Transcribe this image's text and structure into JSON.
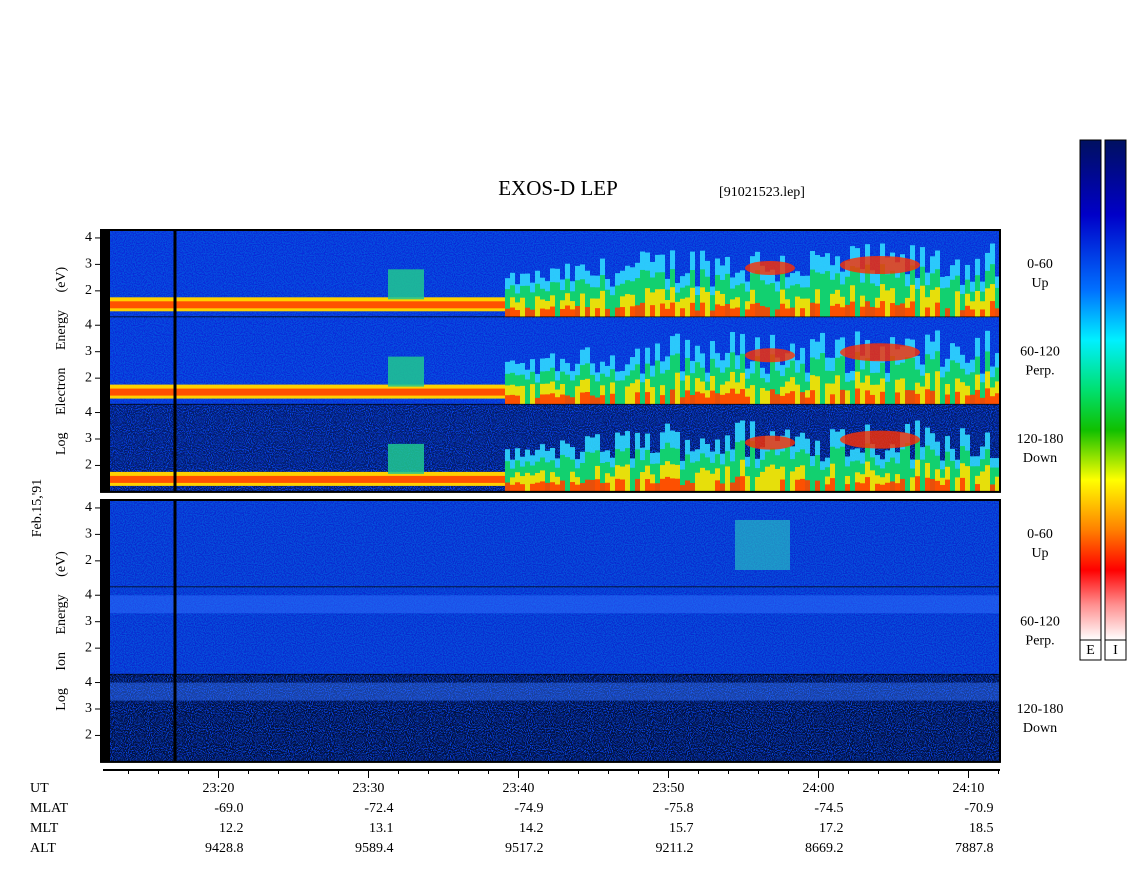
{
  "title": "EXOS-D LEP",
  "file": "[91021523.lep]",
  "date": "Feb.15,'91",
  "ylim": [
    1,
    4.3
  ],
  "yticks": [
    2,
    3,
    4
  ],
  "panels": [
    {
      "ylabel": "Log Electron Energy (eV)",
      "subpanels": [
        {
          "angle": "0-60",
          "direction": "Up"
        },
        {
          "angle": "60-120",
          "direction": "Perp."
        },
        {
          "angle": "120-180",
          "direction": "Down"
        }
      ]
    },
    {
      "ylabel": "Log Ion Energy (eV)",
      "subpanels": [
        {
          "angle": "0-60",
          "direction": "Up"
        },
        {
          "angle": "60-120",
          "direction": "Perp."
        },
        {
          "angle": "120-180",
          "direction": "Down"
        }
      ]
    }
  ],
  "xaxis": {
    "xlim": [
      12.3,
      72.1
    ],
    "xticks": [
      {
        "value": 20,
        "label": "23:20"
      },
      {
        "value": 30,
        "label": "23:30"
      },
      {
        "value": 40,
        "label": "23:40"
      },
      {
        "value": 50,
        "label": "23:50"
      },
      {
        "value": 60,
        "label": "24:00"
      },
      {
        "value": 70,
        "label": "24:10"
      }
    ],
    "minor_xticks": [
      14,
      16,
      18,
      22,
      24,
      26,
      28,
      32,
      34,
      36,
      38,
      42,
      44,
      46,
      48,
      52,
      54,
      56,
      58,
      62,
      64,
      66,
      68,
      72
    ],
    "label": "UT"
  },
  "ephemeris": [
    {
      "name": "MLAT",
      "values": [
        "-69.0",
        "-72.4",
        "-74.9",
        "-75.8",
        "-74.5",
        "-70.9"
      ]
    },
    {
      "name": "MLT",
      "values": [
        "12.2",
        "13.1",
        "14.2",
        "15.7",
        "17.2",
        "18.5"
      ]
    },
    {
      "name": "ALT",
      "values": [
        "9428.8",
        "9589.4",
        "9517.2",
        "9211.2",
        "8669.2",
        "7887.8"
      ]
    }
  ],
  "colorbar_labels": [
    "E",
    "I"
  ]
}
